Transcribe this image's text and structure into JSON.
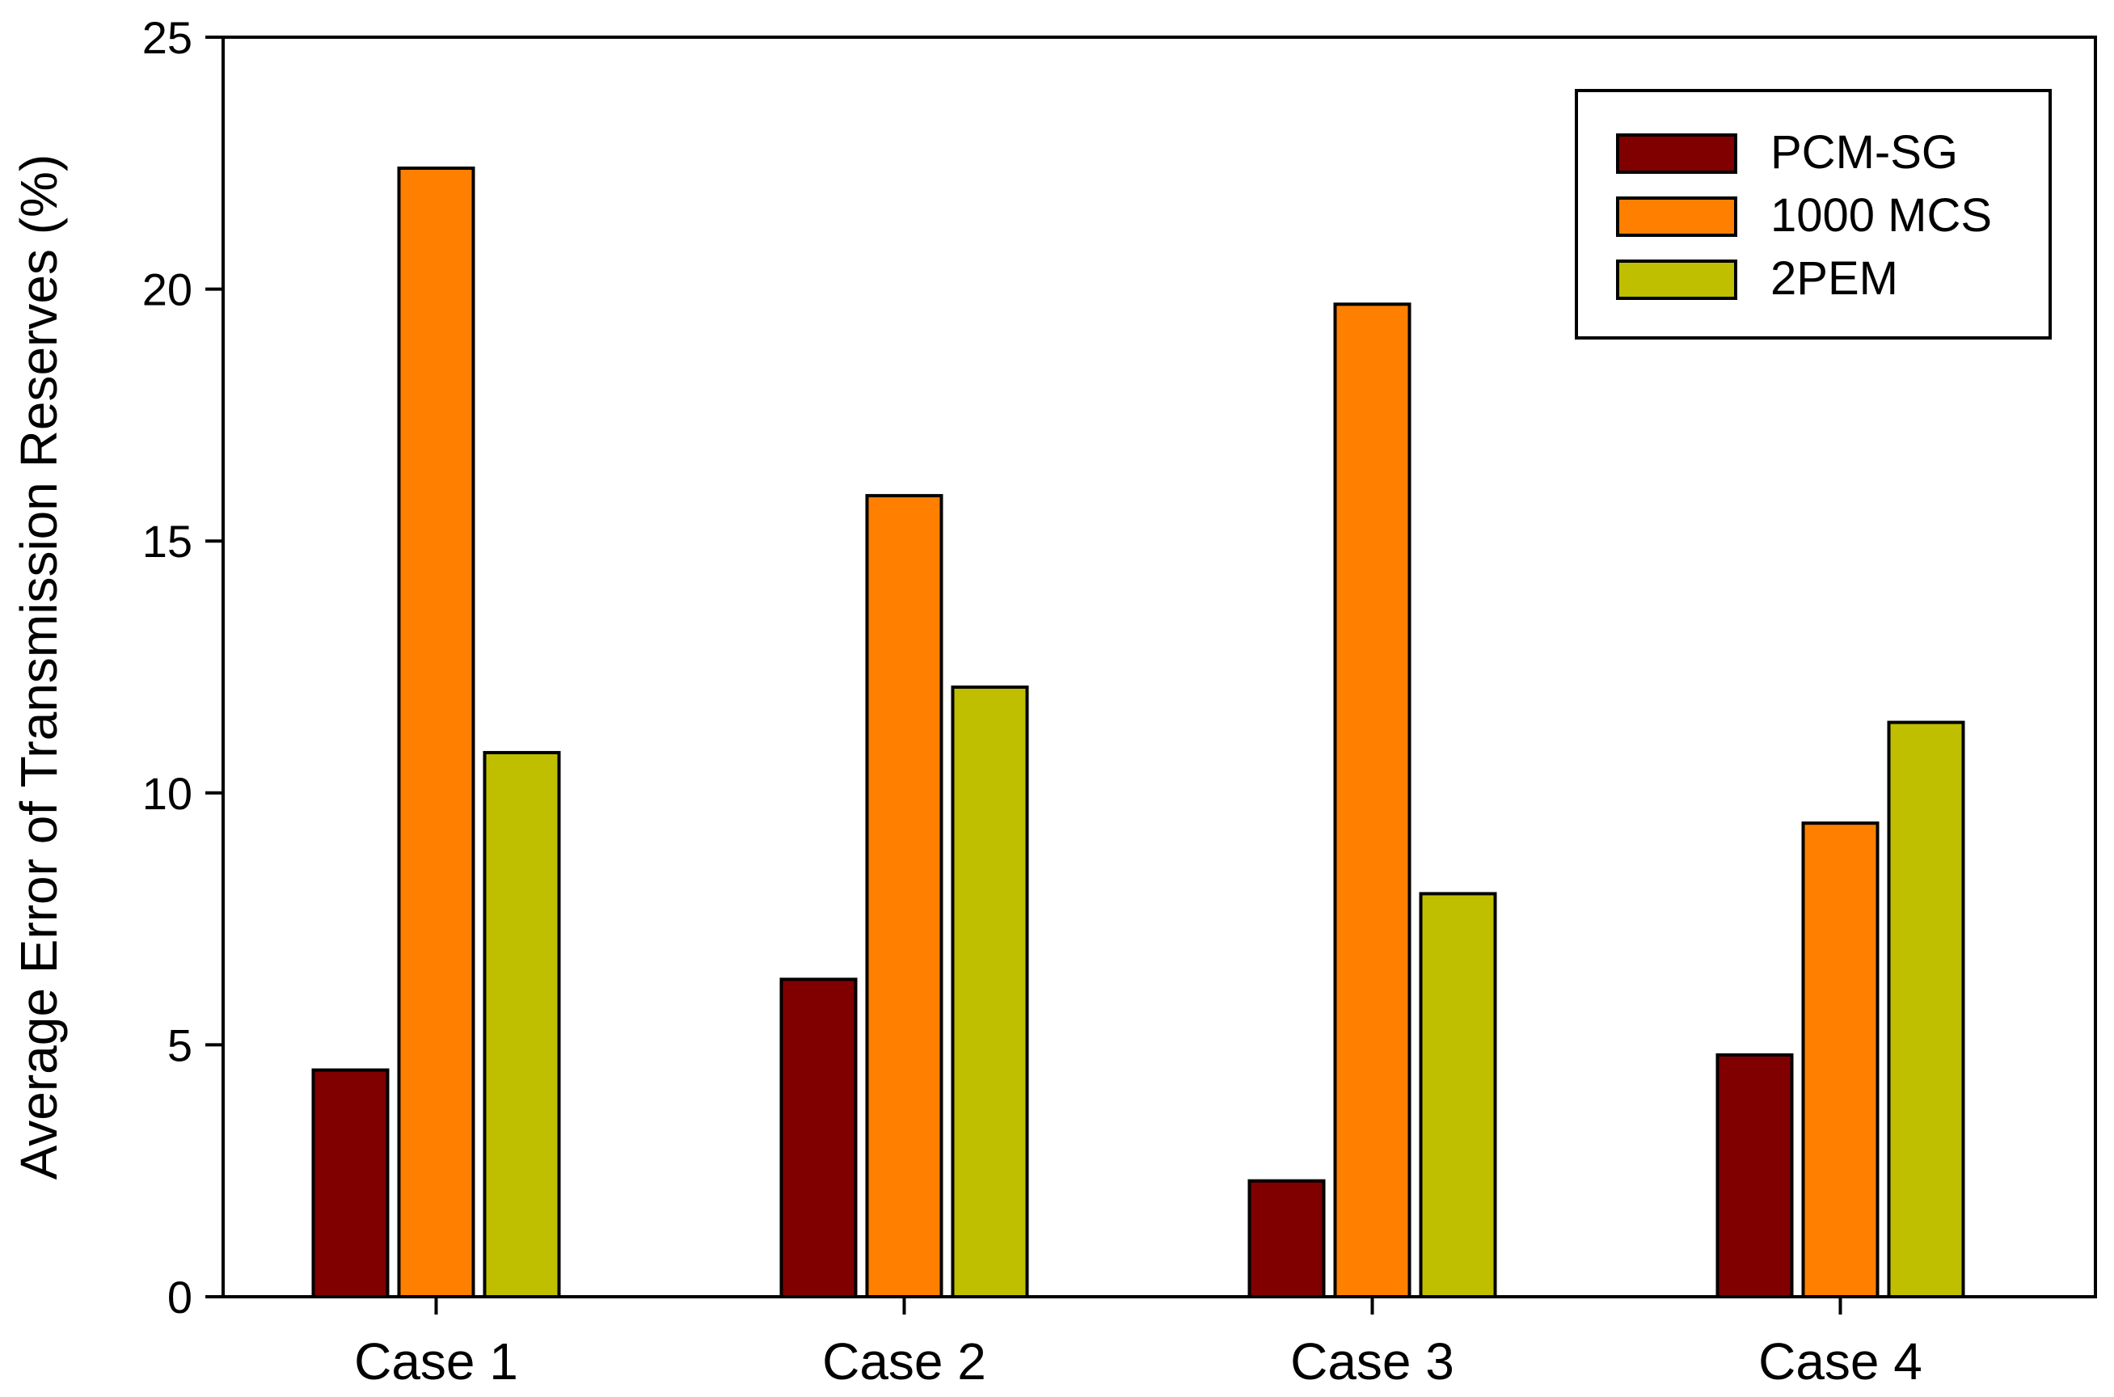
{
  "chart_data": {
    "type": "bar",
    "title": "",
    "xlabel": "",
    "ylabel": "Average Error of Transmission Reserves (%)",
    "ylim": [
      0,
      25
    ],
    "yticks": [
      "0",
      "5",
      "10",
      "15",
      "20",
      "25"
    ],
    "categories": [
      "Case 1",
      "Case 2",
      "Case 3",
      "Case 4"
    ],
    "series": [
      {
        "name": "PCM-SG",
        "color": "#800000",
        "values": [
          4.5,
          6.3,
          2.3,
          4.8
        ]
      },
      {
        "name": "1000 MCS",
        "color": "#FF8000",
        "values": [
          22.4,
          15.9,
          19.7,
          9.4
        ]
      },
      {
        "name": "2PEM",
        "color": "#BFBF00",
        "values": [
          10.8,
          12.1,
          8.0,
          11.4
        ]
      }
    ],
    "legend_position": "top-right",
    "grid": false
  }
}
